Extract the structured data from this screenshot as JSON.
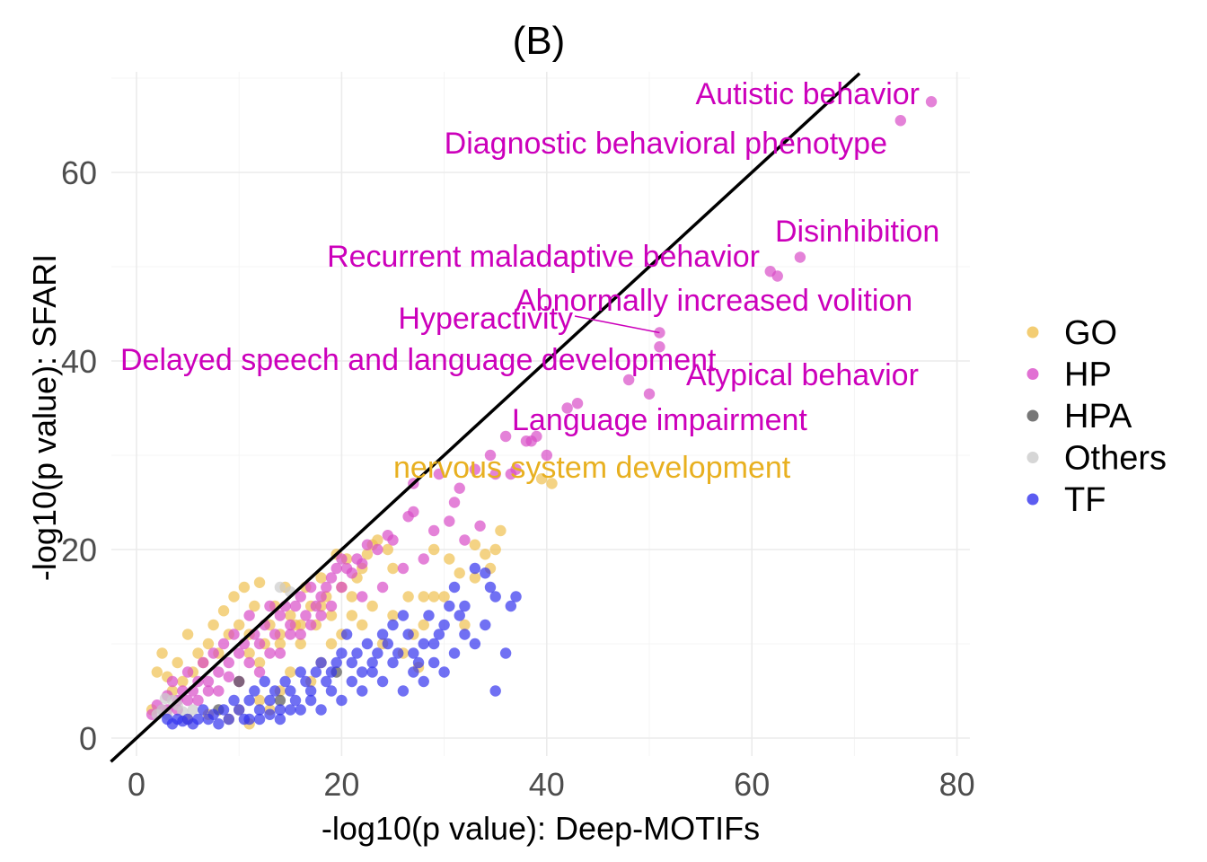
{
  "chart_data": {
    "type": "scatter",
    "title": "(B)",
    "xlabel": "-log10(p value): Deep-MOTIFs",
    "ylabel": "-log10(p value): SFARI",
    "xlim": [
      -2,
      81
    ],
    "ylim": [
      -2,
      70.5
    ],
    "x_ticks": [
      "0",
      "20",
      "40",
      "60",
      "80"
    ],
    "y_ticks": [
      "0",
      "20",
      "40",
      "60"
    ],
    "grid": true,
    "legend_position": "right",
    "reference_line": {
      "slope": 1,
      "intercept": 0,
      "color": "#000000"
    },
    "series": [
      {
        "name": "GO",
        "color": "#F0C050",
        "points": [
          [
            40.5,
            27
          ],
          [
            39.5,
            27.5
          ],
          [
            35.5,
            22
          ],
          [
            34,
            19.5
          ],
          [
            34.5,
            18
          ],
          [
            33,
            20.5
          ],
          [
            31.5,
            17.5
          ],
          [
            30.5,
            19
          ],
          [
            29,
            20
          ],
          [
            28,
            15
          ],
          [
            27,
            11
          ],
          [
            26.5,
            15
          ],
          [
            25,
            18
          ],
          [
            24.5,
            20
          ],
          [
            23.5,
            21
          ],
          [
            23,
            20.5
          ],
          [
            22.5,
            19.5
          ],
          [
            22,
            18
          ],
          [
            21.5,
            17
          ],
          [
            21,
            15
          ],
          [
            20.5,
            19
          ],
          [
            20,
            16
          ],
          [
            19.5,
            19.5
          ],
          [
            19,
            13
          ],
          [
            18.5,
            15
          ],
          [
            18,
            17
          ],
          [
            17.5,
            12
          ],
          [
            17,
            14
          ],
          [
            16.5,
            16
          ],
          [
            16,
            10
          ],
          [
            15.5,
            12
          ],
          [
            15,
            13
          ],
          [
            14.5,
            16
          ],
          [
            14,
            11
          ],
          [
            13.5,
            14
          ],
          [
            13,
            12
          ],
          [
            12.5,
            10
          ],
          [
            12,
            16.5
          ],
          [
            11.5,
            14
          ],
          [
            11,
            9
          ],
          [
            10.5,
            16
          ],
          [
            10,
            12
          ],
          [
            9.5,
            15
          ],
          [
            9,
            11
          ],
          [
            8.5,
            13.5
          ],
          [
            8,
            9
          ],
          [
            7.5,
            12
          ],
          [
            7,
            10
          ],
          [
            6.5,
            8
          ],
          [
            6,
            9
          ],
          [
            5.5,
            7
          ],
          [
            5,
            11
          ],
          [
            4.5,
            6
          ],
          [
            4,
            8
          ],
          [
            3.5,
            5
          ],
          [
            3,
            6.5
          ],
          [
            2.5,
            9
          ],
          [
            2,
            7
          ],
          [
            1.5,
            3
          ],
          [
            24,
            10
          ],
          [
            26,
            9
          ],
          [
            27.5,
            7.5
          ],
          [
            22,
            12
          ],
          [
            20,
            11
          ],
          [
            18,
            8
          ],
          [
            17,
            6
          ],
          [
            15,
            7
          ],
          [
            14,
            5
          ],
          [
            12,
            4
          ],
          [
            10,
            3
          ],
          [
            9,
            2
          ],
          [
            7,
            2.5
          ],
          [
            13,
            3
          ],
          [
            11,
            1.5
          ],
          [
            5,
            2
          ],
          [
            35,
            20
          ],
          [
            33,
            17
          ],
          [
            29,
            15
          ],
          [
            32,
            12
          ],
          [
            25,
            13
          ],
          [
            18,
            14
          ],
          [
            16,
            12
          ],
          [
            14,
            10
          ],
          [
            12,
            8
          ],
          [
            11,
            11
          ],
          [
            23,
            14
          ],
          [
            21,
            13
          ],
          [
            30,
            15
          ],
          [
            19,
            10
          ],
          [
            28,
            12
          ]
        ]
      },
      {
        "name": "HP",
        "color": "#D94DC8",
        "points": [
          [
            77.5,
            67.5
          ],
          [
            74.5,
            65.5
          ],
          [
            64.7,
            51
          ],
          [
            62.5,
            49
          ],
          [
            61.8,
            49.5
          ],
          [
            51,
            43
          ],
          [
            51,
            41.5
          ],
          [
            48,
            38
          ],
          [
            50,
            36.5
          ],
          [
            43,
            35.5
          ],
          [
            42,
            35
          ],
          [
            39,
            32
          ],
          [
            38.5,
            31.5
          ],
          [
            38,
            31.5
          ],
          [
            36,
            32
          ],
          [
            36.5,
            28
          ],
          [
            35,
            28
          ],
          [
            34.5,
            30
          ],
          [
            33,
            28.5
          ],
          [
            31.5,
            26.5
          ],
          [
            31,
            25
          ],
          [
            29.5,
            28
          ],
          [
            27,
            27
          ],
          [
            27,
            24
          ],
          [
            26.5,
            23.5
          ],
          [
            25,
            21
          ],
          [
            24.5,
            21.5
          ],
          [
            23.5,
            20
          ],
          [
            22.5,
            20.5
          ],
          [
            22,
            18.5
          ],
          [
            21.5,
            19
          ],
          [
            21,
            17.5
          ],
          [
            20.5,
            18
          ],
          [
            20,
            19
          ],
          [
            19.5,
            18
          ],
          [
            19,
            17
          ],
          [
            18.5,
            16
          ],
          [
            18,
            15
          ],
          [
            17.5,
            14
          ],
          [
            17,
            16
          ],
          [
            16.5,
            13
          ],
          [
            16,
            15
          ],
          [
            15.5,
            14
          ],
          [
            15,
            12
          ],
          [
            14.5,
            14
          ],
          [
            14,
            13
          ],
          [
            13.5,
            11
          ],
          [
            13,
            14
          ],
          [
            12.5,
            12
          ],
          [
            12,
            10
          ],
          [
            11.5,
            11
          ],
          [
            11,
            13
          ],
          [
            10.5,
            10
          ],
          [
            10,
            9
          ],
          [
            9.5,
            11
          ],
          [
            9,
            8
          ],
          [
            8.5,
            10
          ],
          [
            8,
            7
          ],
          [
            7.5,
            9
          ],
          [
            7,
            6
          ],
          [
            6.5,
            8
          ],
          [
            6,
            6
          ],
          [
            5.5,
            5
          ],
          [
            5,
            7
          ],
          [
            4.5,
            5
          ],
          [
            4,
            4
          ],
          [
            3.5,
            6
          ],
          [
            3,
            4.5
          ],
          [
            2.5,
            3
          ],
          [
            2,
            3.5
          ],
          [
            1.5,
            2.5
          ],
          [
            29,
            22
          ],
          [
            30.5,
            23
          ],
          [
            32,
            21
          ],
          [
            33.5,
            22.5
          ],
          [
            26,
            18
          ],
          [
            24,
            16
          ],
          [
            22,
            15
          ],
          [
            19,
            14
          ],
          [
            17,
            12
          ],
          [
            15,
            11
          ],
          [
            13,
            9
          ],
          [
            11,
            8
          ],
          [
            9,
            6.5
          ],
          [
            7,
            5
          ],
          [
            5,
            4
          ],
          [
            3,
            3
          ],
          [
            20,
            16
          ],
          [
            18,
            13
          ],
          [
            16,
            11
          ],
          [
            14,
            9
          ],
          [
            12,
            7
          ],
          [
            10,
            6
          ],
          [
            8,
            5
          ],
          [
            6,
            4
          ],
          [
            4,
            3
          ],
          [
            37,
            28.5
          ],
          [
            40,
            30
          ],
          [
            28,
            19
          ]
        ]
      },
      {
        "name": "HPA",
        "color": "#555555",
        "points": [
          [
            19.5,
            7
          ],
          [
            14,
            4
          ],
          [
            10,
            6
          ],
          [
            8,
            3
          ]
        ]
      },
      {
        "name": "Others",
        "color": "#CCCCCC",
        "points": [
          [
            15,
            15.5
          ],
          [
            14,
            16
          ],
          [
            2.5,
            3
          ],
          [
            3,
            2.5
          ],
          [
            2,
            2.5
          ],
          [
            4,
            3.5
          ],
          [
            5.5,
            3
          ],
          [
            3.5,
            4
          ],
          [
            4.5,
            2.8
          ],
          [
            2.8,
            4.2
          ]
        ]
      },
      {
        "name": "TF",
        "color": "#3333EE",
        "points": [
          [
            37,
            15
          ],
          [
            35,
            15
          ],
          [
            34,
            12
          ],
          [
            34,
            17.5
          ],
          [
            33,
            18
          ],
          [
            31.5,
            13
          ],
          [
            31,
            16
          ],
          [
            30.5,
            14
          ],
          [
            30,
            12
          ],
          [
            29.5,
            11
          ],
          [
            29,
            8
          ],
          [
            28.5,
            13
          ],
          [
            28,
            10
          ],
          [
            27.5,
            8
          ],
          [
            27,
            7
          ],
          [
            26.5,
            11
          ],
          [
            26,
            13
          ],
          [
            25.5,
            9
          ],
          [
            25,
            12
          ],
          [
            24.5,
            10
          ],
          [
            24,
            11
          ],
          [
            23.5,
            9
          ],
          [
            23,
            8
          ],
          [
            22.5,
            10
          ],
          [
            22,
            7
          ],
          [
            21.5,
            9
          ],
          [
            21,
            8
          ],
          [
            20.5,
            11
          ],
          [
            20,
            9
          ],
          [
            19.5,
            8
          ],
          [
            19,
            7
          ],
          [
            18.5,
            6
          ],
          [
            18,
            8
          ],
          [
            17.5,
            7
          ],
          [
            17,
            5
          ],
          [
            16.5,
            6
          ],
          [
            16,
            7
          ],
          [
            15.5,
            4
          ],
          [
            15,
            5
          ],
          [
            14.5,
            6
          ],
          [
            14,
            3
          ],
          [
            13.5,
            5
          ],
          [
            13,
            4
          ],
          [
            12.5,
            6
          ],
          [
            12,
            3
          ],
          [
            11.5,
            5
          ],
          [
            11,
            4
          ],
          [
            10.5,
            2
          ],
          [
            10,
            3
          ],
          [
            9.5,
            4
          ],
          [
            9,
            2
          ],
          [
            8.5,
            3
          ],
          [
            8,
            1.5
          ],
          [
            7.5,
            2.5
          ],
          [
            7,
            2
          ],
          [
            6.5,
            3
          ],
          [
            6,
            2
          ],
          [
            5.5,
            1.5
          ],
          [
            5,
            2
          ],
          [
            4.5,
            1.8
          ],
          [
            4,
            2
          ],
          [
            3.5,
            1.5
          ],
          [
            3,
            2
          ],
          [
            36,
            9
          ],
          [
            35,
            5
          ],
          [
            33,
            10
          ],
          [
            32,
            11
          ],
          [
            31,
            9
          ],
          [
            30,
            7
          ],
          [
            28,
            6
          ],
          [
            26,
            5
          ],
          [
            24,
            6
          ],
          [
            22,
            5
          ],
          [
            20,
            4
          ],
          [
            18,
            3
          ],
          [
            16,
            3
          ],
          [
            14,
            2
          ],
          [
            12,
            2
          ],
          [
            19,
            5
          ],
          [
            17,
            4
          ],
          [
            15,
            3
          ],
          [
            13,
            2.5
          ],
          [
            11,
            2
          ],
          [
            21,
            6
          ],
          [
            23,
            7
          ],
          [
            25,
            8
          ],
          [
            27,
            9
          ],
          [
            29,
            10
          ],
          [
            32,
            14
          ],
          [
            34.5,
            16
          ],
          [
            36.5,
            14
          ]
        ]
      }
    ],
    "annotations": [
      {
        "text": "Autistic behavior",
        "color": "#CC00BB"
      },
      {
        "text": "Diagnostic behavioral phenotype",
        "color": "#CC00BB"
      },
      {
        "text": "Disinhibition",
        "color": "#CC00BB"
      },
      {
        "text": "Recurrent maladaptive behavior",
        "color": "#CC00BB"
      },
      {
        "text": "Abnormally increased volition",
        "color": "#CC00BB"
      },
      {
        "text": "Hyperactivity",
        "color": "#CC00BB"
      },
      {
        "text": "Delayed speech and language development",
        "color": "#CC00BB"
      },
      {
        "text": "Atypical behavior",
        "color": "#CC00BB"
      },
      {
        "text": "Language impairment",
        "color": "#CC00BB"
      },
      {
        "text": "nervous system development",
        "color": "#E8B020"
      }
    ]
  }
}
